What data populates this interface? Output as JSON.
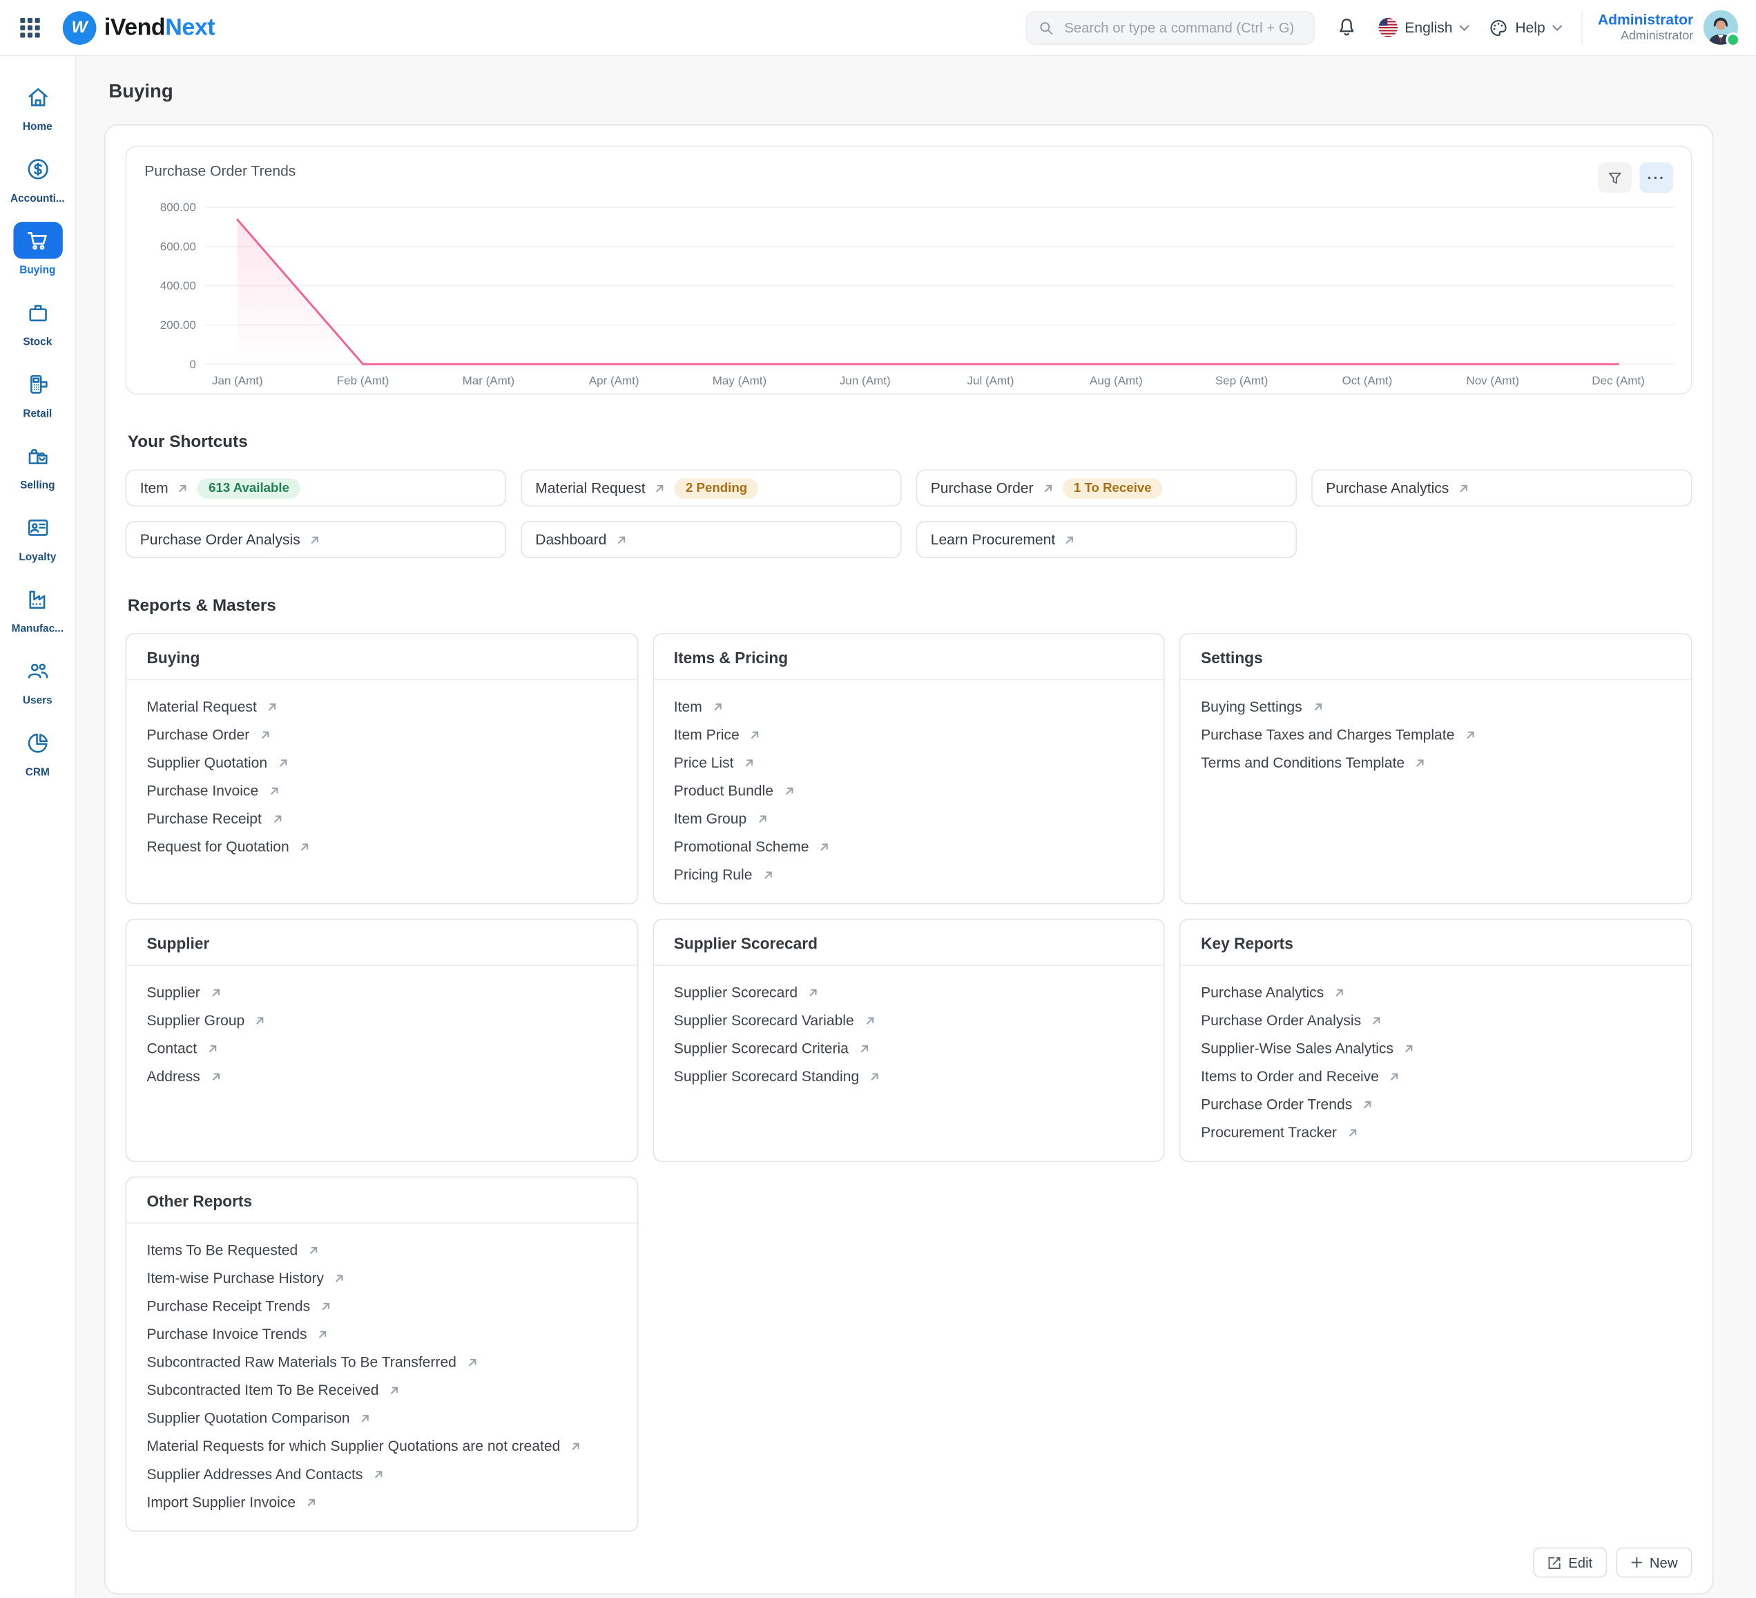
{
  "header": {
    "logo": {
      "ivend": "iVend",
      "next": "Next"
    },
    "search": {
      "placeholder": "Search or type a command (Ctrl + G)"
    },
    "language": "English",
    "help": "Help",
    "user": {
      "name": "Administrator",
      "role": "Administrator"
    }
  },
  "sidebar": {
    "items": [
      {
        "name": "home",
        "label": "Home",
        "icon": "home-icon",
        "active": false
      },
      {
        "name": "accounting",
        "label": "Accounti...",
        "icon": "accounting-icon",
        "active": false
      },
      {
        "name": "buying",
        "label": "Buying",
        "icon": "cart-icon",
        "active": true
      },
      {
        "name": "stock",
        "label": "Stock",
        "icon": "box-icon",
        "active": false
      },
      {
        "name": "retail",
        "label": "Retail",
        "icon": "pos-icon",
        "active": false
      },
      {
        "name": "selling",
        "label": "Selling",
        "icon": "bag-icon",
        "active": false
      },
      {
        "name": "loyalty",
        "label": "Loyalty",
        "icon": "card-icon",
        "active": false
      },
      {
        "name": "manufacturing",
        "label": "Manufac...",
        "icon": "factory-icon",
        "active": false
      },
      {
        "name": "users",
        "label": "Users",
        "icon": "users-icon",
        "active": false
      },
      {
        "name": "crm",
        "label": "CRM",
        "icon": "pie-icon",
        "active": false
      }
    ]
  },
  "page": {
    "title": "Buying"
  },
  "chart": {
    "menu_label": "···"
  },
  "chart_data": {
    "type": "line",
    "title": "Purchase Order Trends",
    "categories": [
      "Jan (Amt)",
      "Feb (Amt)",
      "Mar (Amt)",
      "Apr (Amt)",
      "May (Amt)",
      "Jun (Amt)",
      "Jul (Amt)",
      "Aug (Amt)",
      "Sep (Amt)",
      "Oct (Amt)",
      "Nov (Amt)",
      "Dec (Amt)"
    ],
    "values": [
      737,
      0,
      0,
      0,
      0,
      0,
      0,
      0,
      0,
      0,
      0,
      0
    ],
    "ylim": [
      0,
      800
    ],
    "yticks": [
      "800.00",
      "600.00",
      "400.00",
      "200.00",
      "0"
    ],
    "grid": true,
    "legend": "none",
    "line_color": "#f0628f",
    "area_color": "rgba(240,98,146,0.14)"
  },
  "shortcuts": {
    "heading": "Your Shortcuts",
    "items": [
      {
        "label": "Item",
        "badge": "613 Available",
        "badge_color": "green"
      },
      {
        "label": "Material Request",
        "badge": "2 Pending",
        "badge_color": "orange"
      },
      {
        "label": "Purchase Order",
        "badge": "1 To Receive",
        "badge_color": "orange"
      },
      {
        "label": "Purchase Analytics",
        "badge": null,
        "badge_color": null
      },
      {
        "label": "Purchase Order Analysis",
        "badge": null,
        "badge_color": null
      },
      {
        "label": "Dashboard",
        "badge": null,
        "badge_color": null
      },
      {
        "label": "Learn Procurement",
        "badge": null,
        "badge_color": null
      }
    ]
  },
  "reports": {
    "heading": "Reports & Masters",
    "cards": [
      {
        "title": "Buying",
        "links": [
          "Material Request",
          "Purchase Order",
          "Supplier Quotation",
          "Purchase Invoice",
          "Purchase Receipt",
          "Request for Quotation"
        ]
      },
      {
        "title": "Items & Pricing",
        "links": [
          "Item",
          "Item Price",
          "Price List",
          "Product Bundle",
          "Item Group",
          "Promotional Scheme",
          "Pricing Rule"
        ]
      },
      {
        "title": "Settings",
        "links": [
          "Buying Settings",
          "Purchase Taxes and Charges Template",
          "Terms and Conditions Template"
        ]
      },
      {
        "title": "Supplier",
        "links": [
          "Supplier",
          "Supplier Group",
          "Contact",
          "Address"
        ]
      },
      {
        "title": "Supplier Scorecard",
        "links": [
          "Supplier Scorecard",
          "Supplier Scorecard Variable",
          "Supplier Scorecard Criteria",
          "Supplier Scorecard Standing"
        ]
      },
      {
        "title": "Key Reports",
        "links": [
          "Purchase Analytics",
          "Purchase Order Analysis",
          "Supplier-Wise Sales Analytics",
          "Items to Order and Receive",
          "Purchase Order Trends",
          "Procurement Tracker"
        ]
      },
      {
        "title": "Other Reports",
        "links": [
          "Items To Be Requested",
          "Item-wise Purchase History",
          "Purchase Receipt Trends",
          "Purchase Invoice Trends",
          "Subcontracted Raw Materials To Be Transferred",
          "Subcontracted Item To Be Received",
          "Supplier Quotation Comparison",
          "Material Requests for which Supplier Quotations are not created",
          "Supplier Addresses And Contacts",
          "Import Supplier Invoice"
        ]
      }
    ]
  },
  "footer": {
    "edit_label": "Edit",
    "new_label": "New"
  },
  "colors": {
    "accent_blue": "#1873e8",
    "sidebar_icon_blue": "#1a6fb0",
    "chart_line_pink": "#f0628f",
    "badge_green_text": "#1f8254",
    "badge_green_bg": "#e3f4ea",
    "badge_orange_text": "#ab6e12",
    "badge_orange_bg": "#f9efdb",
    "online_green": "#2bc46f"
  }
}
